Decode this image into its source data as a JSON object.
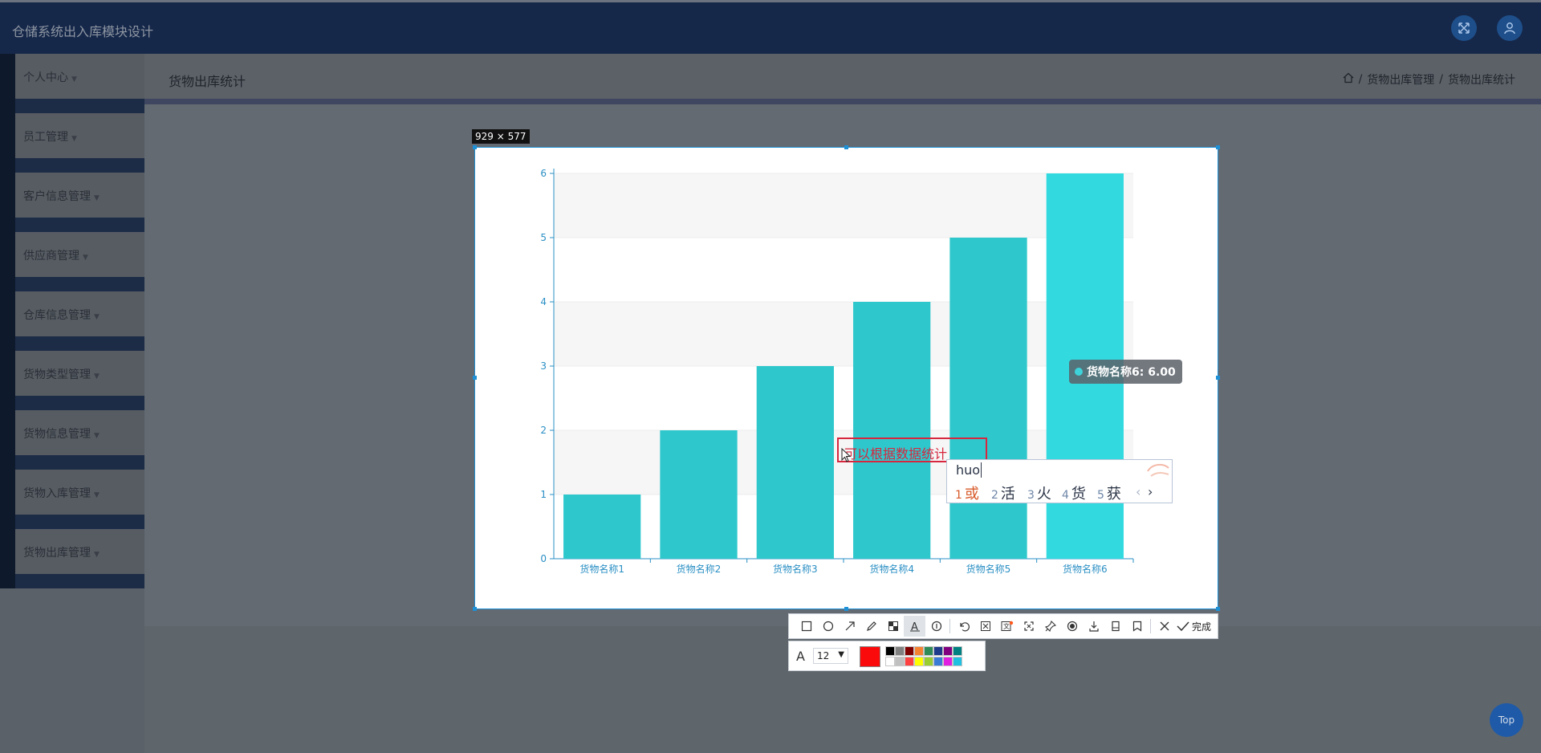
{
  "app": {
    "title": "仓储系统出入库模块设计"
  },
  "header_icons": [
    "fullscreen-icon",
    "user-icon"
  ],
  "sidebar": {
    "items": [
      {
        "label": "个人中心"
      },
      {
        "label": "员工管理"
      },
      {
        "label": "客户信息管理"
      },
      {
        "label": "供应商管理"
      },
      {
        "label": "仓库信息管理"
      },
      {
        "label": "货物类型管理"
      },
      {
        "label": "货物信息管理"
      },
      {
        "label": "货物入库管理"
      },
      {
        "label": "货物出库管理"
      }
    ]
  },
  "page": {
    "title": "货物出库统计",
    "breadcrumb": [
      "货物出库管理",
      "货物出库统计"
    ],
    "breadcrumb_sep": "/"
  },
  "capture": {
    "size_label": "929 × 577",
    "behind_text": "名"
  },
  "chart_data": {
    "type": "bar",
    "categories": [
      "货物名称1",
      "货物名称2",
      "货物名称3",
      "货物名称4",
      "货物名称5",
      "货物名称6"
    ],
    "values": [
      1,
      2,
      3,
      4,
      5,
      6
    ],
    "ylim": [
      0,
      6
    ],
    "yticks": [
      0,
      1,
      2,
      3,
      4,
      5,
      6
    ],
    "bar_color": "#2ec8cc",
    "highlight_color": "#32dae0",
    "highlight_index": 5,
    "grid": true,
    "tooltip": "货物名称6: 6.00"
  },
  "annotation": {
    "text": "可以根据数据统计"
  },
  "ime": {
    "input": "huo",
    "candidates": [
      {
        "num": "1",
        "text": "或"
      },
      {
        "num": "2",
        "text": "活"
      },
      {
        "num": "3",
        "text": "火"
      },
      {
        "num": "4",
        "text": "货"
      },
      {
        "num": "5",
        "text": "获"
      }
    ],
    "prev": "‹",
    "next": "›"
  },
  "toolbar": {
    "tools": [
      "rectangle-icon",
      "ellipse-icon",
      "arrow-icon",
      "pencil-icon",
      "mosaic-icon",
      "text-icon",
      "number-icon",
      "undo-icon",
      "erase-icon",
      "ocr-icon",
      "crop-icon",
      "pin-icon",
      "record-icon",
      "download-icon",
      "long-screenshot-icon",
      "bookmark-icon"
    ],
    "done_label": "完成",
    "font_size": "12",
    "current_color": "#fa0a0a",
    "palette_top": [
      "#000000",
      "#808080",
      "#800000",
      "#f58231",
      "#2e8b57",
      "#1e3a8a",
      "#800080",
      "#008080"
    ],
    "palette_bottom": [
      "#ffffff",
      "#c0c0c0",
      "#ff4040",
      "#ffff00",
      "#9acd32",
      "#3a7bd5",
      "#e020e0",
      "#20c0e0"
    ]
  },
  "top_button": {
    "label": "Top"
  }
}
